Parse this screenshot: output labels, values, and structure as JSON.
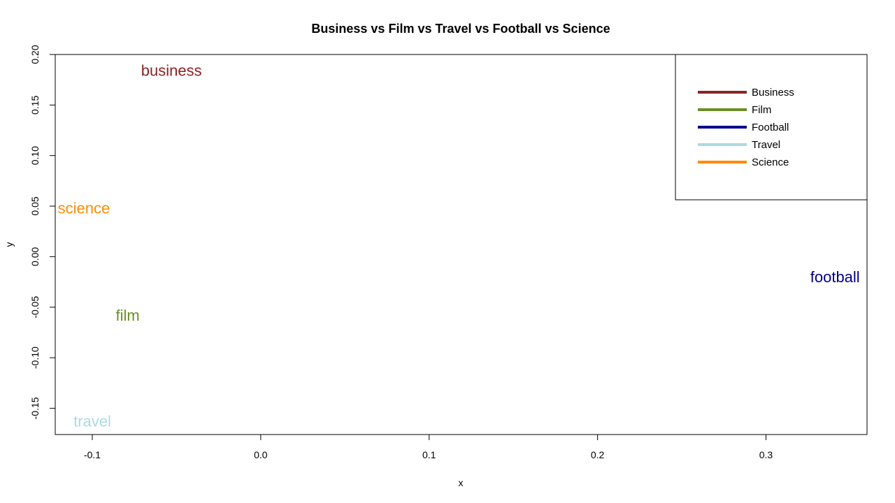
{
  "chart_data": {
    "type": "scatter",
    "title": "Business vs Film vs Travel vs Football vs Science",
    "xlabel": "x",
    "ylabel": "y",
    "xlim": [
      -0.122,
      0.36
    ],
    "ylim": [
      -0.176,
      0.2
    ],
    "x_ticks": [
      -0.1,
      0.0,
      0.1,
      0.2,
      0.3
    ],
    "y_ticks": [
      -0.15,
      -0.1,
      -0.05,
      0.0,
      0.05,
      0.1,
      0.15,
      0.2
    ],
    "x_tick_labels": [
      "-0.1",
      "0.0",
      "0.1",
      "0.2",
      "0.3"
    ],
    "y_tick_labels": [
      "-0.15",
      "-0.10",
      "-0.05",
      "0.00",
      "0.05",
      "0.10",
      "0.15",
      "0.20"
    ],
    "grid": false,
    "legend_position": "top-right",
    "points": [
      {
        "label": "business",
        "x": -0.053,
        "y": 0.184,
        "color": "#8B2323"
      },
      {
        "label": "science",
        "x": -0.105,
        "y": 0.048,
        "color": "#FF8C00"
      },
      {
        "label": "film",
        "x": -0.079,
        "y": -0.058,
        "color": "#6B8E23"
      },
      {
        "label": "travel",
        "x": -0.1,
        "y": -0.163,
        "color": "#ADD8E6"
      },
      {
        "label": "football",
        "x": 0.341,
        "y": -0.02,
        "color": "#00008B"
      }
    ],
    "legend": [
      {
        "name": "Business",
        "color": "#8B2323"
      },
      {
        "name": "Film",
        "color": "#6B8E23"
      },
      {
        "name": "Football",
        "color": "#00008B"
      },
      {
        "name": "Travel",
        "color": "#ADD8E6"
      },
      {
        "name": "Science",
        "color": "#FF8C00"
      }
    ]
  }
}
